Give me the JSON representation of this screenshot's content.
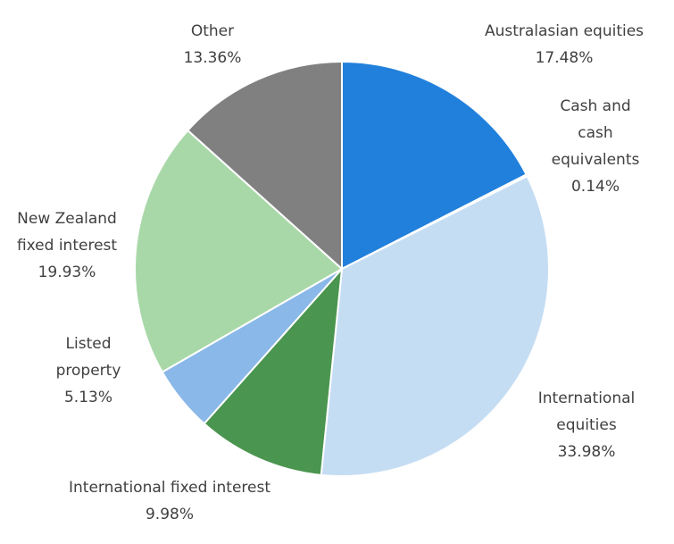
{
  "chart_data": {
    "type": "pie",
    "categories": [
      "Australasian equities",
      "Cash and cash equivalents",
      "International equities",
      "International fixed interest",
      "Listed property",
      "New Zealand fixed interest",
      "Other"
    ],
    "values": [
      17.48,
      0.14,
      33.98,
      9.98,
      5.13,
      19.93,
      13.36
    ],
    "value_labels": [
      "17.48%",
      "0.14%",
      "33.98%",
      "9.98%",
      "5.13%",
      "19.93%",
      "13.36%"
    ],
    "colors": [
      "#2180dc",
      "#9cc3e8",
      "#c5ddf3",
      "#4a954f",
      "#8ab8e8",
      "#a9d8a8",
      "#808080"
    ]
  }
}
